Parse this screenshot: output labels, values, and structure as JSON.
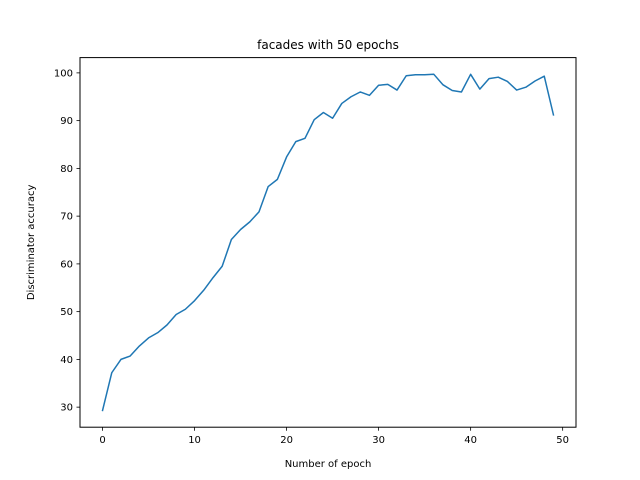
{
  "chart_data": {
    "type": "line",
    "title": "facades with 50 epochs",
    "xlabel": "Number of epoch",
    "ylabel": "Discriminator accuracy",
    "xlim": [
      -2.45,
      51.45
    ],
    "ylim": [
      25.8,
      103.2
    ],
    "xticks": [
      "0",
      "10",
      "20",
      "30",
      "40",
      "50"
    ],
    "yticks": [
      "30",
      "40",
      "50",
      "60",
      "70",
      "80",
      "90",
      "100"
    ],
    "grid": false,
    "line_color": "#1f77b4",
    "series": [
      {
        "x": [
          0,
          1,
          2,
          3,
          4,
          5,
          6,
          7,
          8,
          9,
          10,
          11,
          12,
          13,
          14,
          15,
          16,
          17,
          18,
          19,
          20,
          21,
          22,
          23,
          24,
          25,
          26,
          27,
          28,
          29,
          30,
          31,
          32,
          33,
          34,
          35,
          36,
          37,
          38,
          39,
          40,
          41,
          42,
          43,
          44,
          45,
          46,
          47,
          48,
          49
        ],
        "values": [
          29.3,
          37.2,
          40.0,
          40.7,
          42.8,
          44.5,
          45.6,
          47.2,
          49.4,
          50.5,
          52.3,
          54.5,
          57.1,
          59.5,
          65.1,
          67.2,
          68.8,
          70.9,
          76.2,
          77.7,
          82.4,
          85.6,
          86.3,
          90.2,
          91.7,
          90.5,
          93.6,
          95.0,
          96.0,
          95.3,
          97.4,
          97.6,
          96.4,
          99.4,
          99.6,
          99.6,
          99.7,
          97.5,
          96.3,
          96.0,
          99.7,
          96.6,
          98.8,
          99.1,
          98.2,
          96.4,
          97.0,
          98.3,
          99.3,
          91.2
        ]
      }
    ]
  }
}
